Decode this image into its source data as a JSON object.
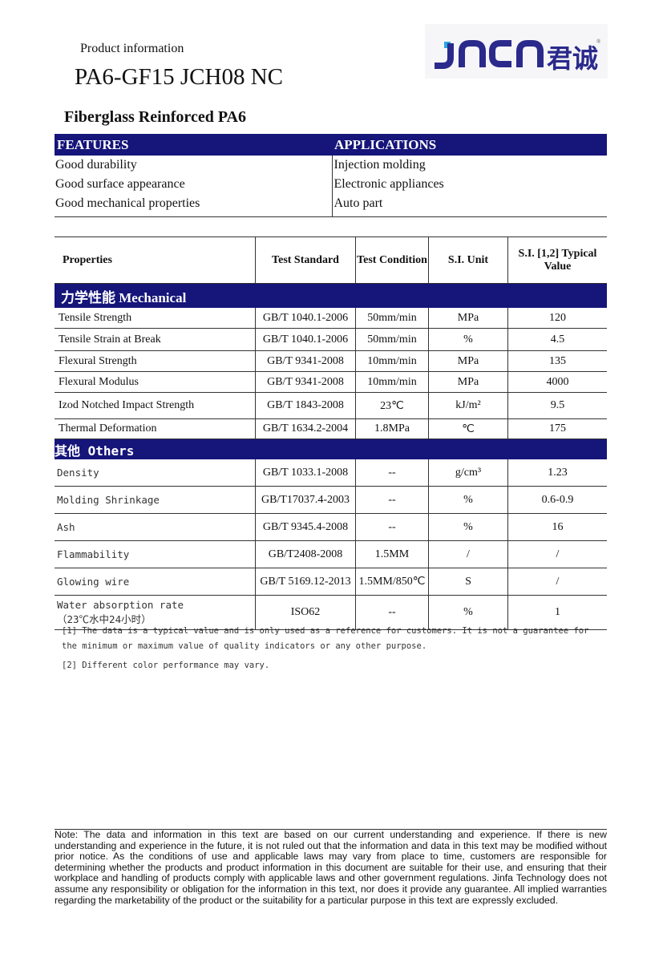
{
  "header": {
    "label": "Product information",
    "product": "PA6-GF15 JCH08 NC",
    "subtitle": "Fiberglass Reinforced PA6",
    "logo_text": "JNCN 君诚"
  },
  "features": {
    "heading": "FEATURES",
    "items": [
      "Good durability",
      "Good surface appearance",
      "Good mechanical properties"
    ]
  },
  "applications": {
    "heading": "APPLICATIONS",
    "items": [
      "Injection molding",
      "Electronic appliances",
      "Auto part"
    ]
  },
  "table": {
    "headers": [
      "Properties",
      "Test Standard",
      "Test Condition",
      "S.I. Unit",
      "S.I. [1,2] Typical Value"
    ],
    "sections": [
      {
        "title": "力学性能  Mechanical",
        "rows": [
          [
            "Tensile Strength",
            "GB/T 1040.1-2006",
            "50mm/min",
            "MPa",
            "120"
          ],
          [
            "Tensile Strain at Break",
            "GB/T 1040.1-2006",
            "50mm/min",
            "%",
            "4.5"
          ],
          [
            "Flexural Strength",
            "GB/T 9341-2008",
            "10mm/min",
            "MPa",
            "135"
          ],
          [
            "Flexural Modulus",
            "GB/T 9341-2008",
            "10mm/min",
            "MPa",
            "4000"
          ],
          [
            "Izod Notched Impact Strength",
            "GB/T 1843-2008",
            "23℃",
            "kJ/m²",
            "9.5"
          ],
          [
            "Thermal Deformation",
            "GB/T 1634.2-2004",
            "1.8MPa",
            "℃",
            "175"
          ]
        ]
      },
      {
        "title": "其他 Others",
        "rows": [
          [
            "Density",
            "GB/T 1033.1-2008",
            "--",
            "g/cm³",
            "1.23"
          ],
          [
            "Molding Shrinkage",
            "GB/T17037.4-2003",
            "--",
            "%",
            "0.6-0.9"
          ],
          [
            "Ash",
            "GB/T 9345.4-2008",
            "--",
            "%",
            "16"
          ],
          [
            "Flammability",
            "GB/T2408-2008",
            "1.5MM",
            "/",
            "/"
          ],
          [
            "Glowing wire",
            "GB/T 5169.12-2013",
            "1.5MM/850℃",
            "S",
            "/"
          ],
          [
            "Water absorption rate\n（23℃水中24小时）",
            "ISO62",
            "--",
            "%",
            "1"
          ]
        ]
      }
    ]
  },
  "notes": [
    "[1] The data is a typical value and is only used as a reference for customers. It is not a guarantee for the minimum or maximum value of quality indicators or any other purpose.",
    "[2] Different color performance may vary."
  ],
  "disclaimer": "Note: The data and information in this text are based on our current understanding and experience. If there is new understanding and experience in the future, it is not ruled out that the information and data in this text may be modified without prior notice. As the conditions of use and applicable laws may vary from place to time, customers are responsible for determining whether the products and product information in this document are suitable for their use, and ensuring that their workplace and handling of products comply with applicable laws and other government regulations. Jinfa Technology does not assume any responsibility or obligation for the information in this text, nor does it provide any guarantee. All implied warranties regarding the marketability of the product or the suitability for a particular purpose in this text are expressly excluded.",
  "colors": {
    "band": "#15157a",
    "logo": "#2a2a8c",
    "logo_accent": "#2aa7e0"
  }
}
